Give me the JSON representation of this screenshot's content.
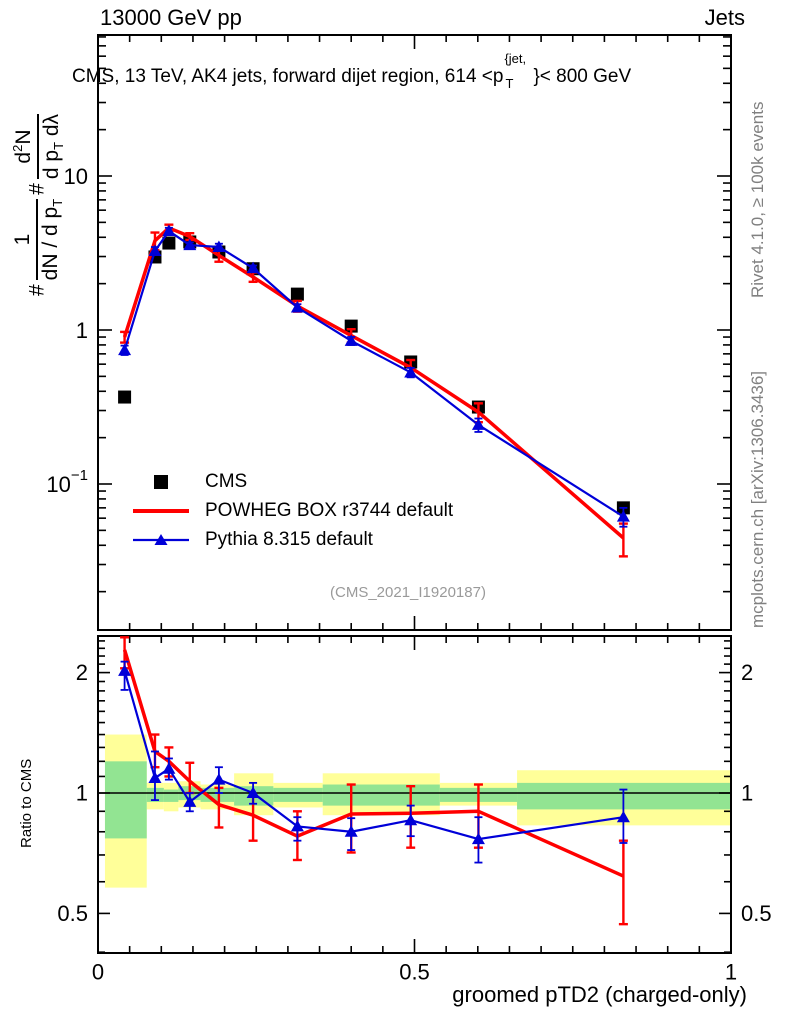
{
  "header": {
    "left": "13000 GeV pp",
    "right": "Jets"
  },
  "plot_title": {
    "prefix": "CMS, 13 TeV, AK4 jets, forward dijet region, 614 <p",
    "sup": "{jet,",
    "sub": "T",
    "suffix": "}< 800 GeV"
  },
  "y_axis_label": {
    "hash": "#",
    "frac1_num": "1",
    "frac1_den_a": "dN / d p",
    "frac1_den_sub": "T",
    "frac2_num_a": "d",
    "frac2_num_sup": "2",
    "frac2_num_b": "N",
    "frac2_den_a": "d p",
    "frac2_den_sub": "T",
    "frac2_den_b": " dλ"
  },
  "ratio_axis_label": "Ratio to CMS",
  "x_axis": {
    "title": "groomed pTD2 (charged-only)"
  },
  "watermark": "(CMS_2021_I1920187)",
  "side_notes": {
    "top": "Rivet 4.1.0, ≥ 100k events",
    "bottom": "mcplots.cern.ch [arXiv:1306.3436]"
  },
  "legend": {
    "items": [
      {
        "label": "CMS",
        "marker": "black-square"
      },
      {
        "label": "POWHEG BOX r3744 default",
        "marker": "red-line"
      },
      {
        "label": "Pythia 8.315 default",
        "marker": "blue-line-triangle"
      }
    ]
  },
  "colors": {
    "cms": "#000000",
    "powheg": "#ff0000",
    "pythia": "#0000d8",
    "band_yellow": "#ffff99",
    "band_green": "#92e492",
    "note_gray": "#808080",
    "watermark_gray": "#9a9a9a"
  },
  "chart_data": [
    {
      "id": "spectrum",
      "type": "line",
      "yscale": "log",
      "xlim": [
        0,
        1
      ],
      "ylim": [
        0.0113,
        82.3
      ],
      "grid": false,
      "x": [
        0.042,
        0.09,
        0.112,
        0.145,
        0.191,
        0.245,
        0.315,
        0.4,
        0.494,
        0.601,
        0.83
      ],
      "series": [
        {
          "name": "CMS",
          "color": "#000000",
          "marker": "square",
          "line": false,
          "values": [
            0.367,
            2.98,
            3.67,
            3.73,
            3.21,
            2.5,
            1.71,
            1.06,
            0.62,
            0.316,
            0.07
          ]
        },
        {
          "name": "POWHEG BOX r3744 default",
          "color": "#ff0000",
          "marker": "none",
          "line": true,
          "values": [
            0.9,
            3.8,
            4.6,
            4.05,
            3.05,
            2.21,
            1.43,
            0.92,
            0.57,
            0.293,
            0.0446
          ],
          "err_rel": [
            0.08,
            0.13,
            0.05,
            0.05,
            0.09,
            0.07,
            0.08,
            0.1,
            0.12,
            0.14,
            0.24
          ]
        },
        {
          "name": "Pythia 8.315 default",
          "color": "#0000d8",
          "marker": "triangle",
          "line": true,
          "values": [
            0.74,
            3.26,
            4.39,
            3.56,
            3.46,
            2.52,
            1.4,
            0.85,
            0.53,
            0.242,
            0.0614
          ],
          "err_rel": [
            0.07,
            0.06,
            0.05,
            0.04,
            0.05,
            0.04,
            0.05,
            0.06,
            0.07,
            0.1,
            0.14
          ]
        }
      ],
      "yticks": [
        {
          "v": 10,
          "base": "10",
          "exp": ""
        },
        {
          "v": 1,
          "base": "1",
          "exp": ""
        },
        {
          "v": 0.1,
          "base": "10",
          "exp": "−1"
        }
      ]
    },
    {
      "id": "ratio",
      "type": "line",
      "yscale": "log",
      "xlim": [
        0,
        1
      ],
      "ylim": [
        0.398,
        2.47
      ],
      "ylabel": "Ratio to CMS",
      "xlabel": "groomed pTD2 (charged-only)",
      "reference_line": 1,
      "x": [
        0.042,
        0.09,
        0.112,
        0.145,
        0.191,
        0.245,
        0.315,
        0.4,
        0.494,
        0.601,
        0.83
      ],
      "bands": [
        {
          "x0": 0.011,
          "x1": 0.077,
          "y_lo": 0.58,
          "y_hi": 1.4,
          "g_lo": 0.77,
          "g_hi": 1.2
        },
        {
          "x0": 0.077,
          "x1": 0.104,
          "y_lo": 0.91,
          "y_hi": 1.06,
          "g_lo": 0.95,
          "g_hi": 1.03
        },
        {
          "x0": 0.104,
          "x1": 0.127,
          "y_lo": 0.9,
          "y_hi": 1.06,
          "g_lo": 0.95,
          "g_hi": 1.02
        },
        {
          "x0": 0.127,
          "x1": 0.162,
          "y_lo": 0.92,
          "y_hi": 1.07,
          "g_lo": 0.96,
          "g_hi": 1.04
        },
        {
          "x0": 0.162,
          "x1": 0.215,
          "y_lo": 0.91,
          "y_hi": 1.05,
          "g_lo": 0.95,
          "g_hi": 1.03
        },
        {
          "x0": 0.215,
          "x1": 0.277,
          "y_lo": 0.88,
          "y_hi": 1.12,
          "g_lo": 0.93,
          "g_hi": 1.04
        },
        {
          "x0": 0.277,
          "x1": 0.355,
          "y_lo": 0.92,
          "y_hi": 1.06,
          "g_lo": 0.95,
          "g_hi": 1.03
        },
        {
          "x0": 0.355,
          "x1": 0.54,
          "y_lo": 0.88,
          "y_hi": 1.12,
          "g_lo": 0.93,
          "g_hi": 1.05
        },
        {
          "x0": 0.54,
          "x1": 0.662,
          "y_lo": 0.93,
          "y_hi": 1.06,
          "g_lo": 0.95,
          "g_hi": 1.03
        },
        {
          "x0": 0.662,
          "x1": 1.0,
          "y_lo": 0.83,
          "y_hi": 1.14,
          "g_lo": 0.91,
          "g_hi": 1.06
        }
      ],
      "series": [
        {
          "name": "POWHEG BOX r3744 default / CMS",
          "color": "#ff0000",
          "marker": "none",
          "line": true,
          "values": [
            2.28,
            1.27,
            1.2,
            1.07,
            0.935,
            0.88,
            0.78,
            0.886,
            0.89,
            0.9,
            0.62
          ],
          "err": [
            [
              2.05,
              2.45
            ],
            [
              1.16,
              1.4
            ],
            [
              1.1,
              1.3
            ],
            [
              1.0,
              1.19
            ],
            [
              0.82,
              1.03
            ],
            [
              0.76,
              0.98
            ],
            [
              0.68,
              0.9
            ],
            [
              0.71,
              1.05
            ],
            [
              0.73,
              1.04
            ],
            [
              0.73,
              1.05
            ],
            [
              0.47,
              0.76
            ]
          ]
        },
        {
          "name": "Pythia 8.315 default / CMS",
          "color": "#0000d8",
          "marker": "triangle",
          "line": true,
          "values": [
            2.02,
            1.09,
            1.15,
            0.95,
            1.08,
            1.0,
            0.825,
            0.8,
            0.855,
            0.767,
            0.87
          ],
          "err": [
            [
              1.81,
              2.13
            ],
            [
              0.96,
              1.27
            ],
            [
              1.08,
              1.22
            ],
            [
              0.9,
              1.0
            ],
            [
              1.0,
              1.16
            ],
            [
              0.94,
              1.06
            ],
            [
              0.76,
              0.87
            ],
            [
              0.72,
              0.865
            ],
            [
              0.78,
              0.93
            ],
            [
              0.67,
              0.87
            ],
            [
              0.75,
              1.02
            ]
          ]
        }
      ],
      "yticks": [
        {
          "v": 2,
          "label": "2"
        },
        {
          "v": 1,
          "label": "1"
        },
        {
          "v": 0.5,
          "label": "0.5"
        }
      ],
      "xticks": [
        {
          "v": 0,
          "label": "0"
        },
        {
          "v": 0.5,
          "label": "0.5"
        },
        {
          "v": 1,
          "label": "1"
        }
      ]
    }
  ]
}
